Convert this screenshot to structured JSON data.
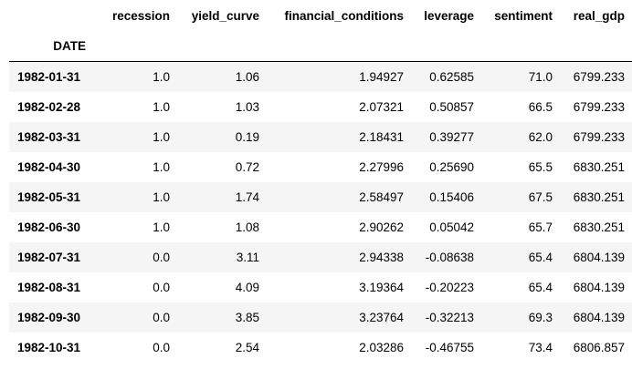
{
  "table": {
    "index_name": "DATE",
    "columns": [
      "recession",
      "yield_curve",
      "financial_conditions",
      "leverage",
      "sentiment",
      "real_gdp"
    ],
    "rows": [
      {
        "date": "1982-01-31",
        "values": [
          "1.0",
          "1.06",
          "1.94927",
          "0.62585",
          "71.0",
          "6799.233"
        ]
      },
      {
        "date": "1982-02-28",
        "values": [
          "1.0",
          "1.03",
          "2.07321",
          "0.50857",
          "66.5",
          "6799.233"
        ]
      },
      {
        "date": "1982-03-31",
        "values": [
          "1.0",
          "0.19",
          "2.18431",
          "0.39277",
          "62.0",
          "6799.233"
        ]
      },
      {
        "date": "1982-04-30",
        "values": [
          "1.0",
          "0.72",
          "2.27996",
          "0.25690",
          "65.5",
          "6830.251"
        ]
      },
      {
        "date": "1982-05-31",
        "values": [
          "1.0",
          "1.74",
          "2.58497",
          "0.15406",
          "67.5",
          "6830.251"
        ]
      },
      {
        "date": "1982-06-30",
        "values": [
          "1.0",
          "1.08",
          "2.90262",
          "0.05042",
          "65.7",
          "6830.251"
        ]
      },
      {
        "date": "1982-07-31",
        "values": [
          "0.0",
          "3.11",
          "2.94338",
          "-0.08638",
          "65.4",
          "6804.139"
        ]
      },
      {
        "date": "1982-08-31",
        "values": [
          "0.0",
          "4.09",
          "3.19364",
          "-0.20223",
          "65.4",
          "6804.139"
        ]
      },
      {
        "date": "1982-09-30",
        "values": [
          "0.0",
          "3.85",
          "3.23764",
          "-0.32213",
          "69.3",
          "6804.139"
        ]
      },
      {
        "date": "1982-10-31",
        "values": [
          "0.0",
          "2.54",
          "2.03286",
          "-0.46755",
          "73.4",
          "6806.857"
        ]
      }
    ]
  }
}
